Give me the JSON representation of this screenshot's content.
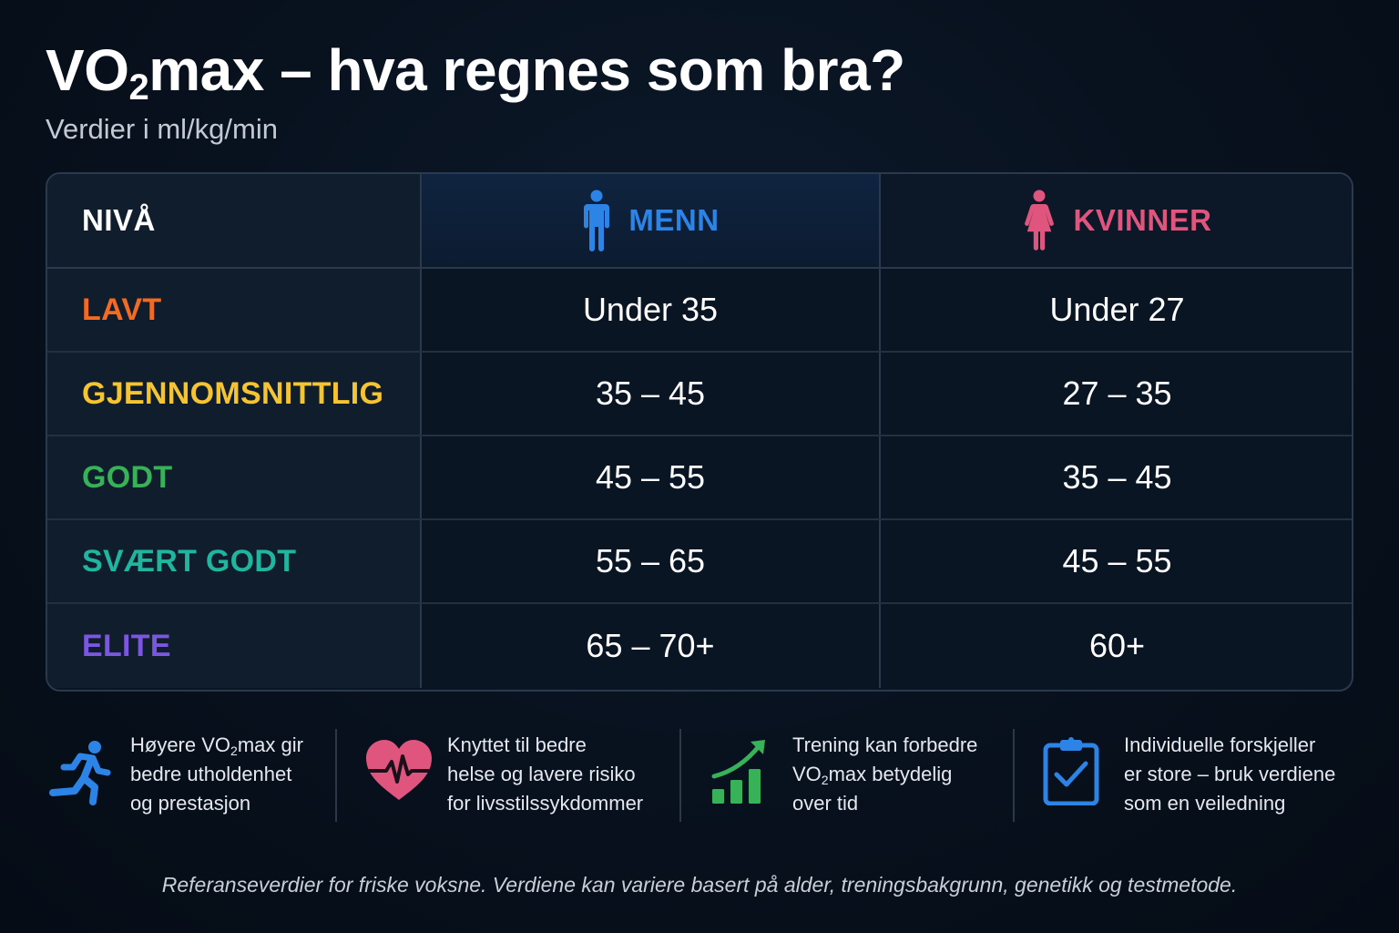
{
  "title": {
    "main": "VO",
    "sub": "2",
    "rest": "max – hva regnes som bra?"
  },
  "subtitle": "Verdier i ml/kg/min",
  "colors": {
    "men": "#2b84e6",
    "women": "#e0557e",
    "lavt": "#f26b21",
    "gjennomsnittlig": "#f5c431",
    "godt": "#38b258",
    "svaert_godt": "#1fb59e",
    "elite": "#7b56e0"
  },
  "table": {
    "header": {
      "level": "NIVÅ",
      "men": "MENN",
      "women": "KVINNER",
      "men_icon": "male-person-icon",
      "women_icon": "female-person-icon"
    },
    "rows": [
      {
        "level": "LAVT",
        "men": "Under 35",
        "women": "Under 27",
        "color": "#f26b21"
      },
      {
        "level": "GJENNOMSNITTLIG",
        "men": "35 – 45",
        "women": "27 – 35",
        "color": "#f5c431"
      },
      {
        "level": "GODT",
        "men": "45 – 55",
        "women": "35 – 45",
        "color": "#38b258"
      },
      {
        "level": "SVÆRT GODT",
        "men": "55 – 65",
        "women": "45 – 55",
        "color": "#1fb59e"
      },
      {
        "level": "ELITE",
        "men": "65 – 70+",
        "women": "60+",
        "color": "#7b56e0"
      }
    ]
  },
  "features": [
    {
      "icon": "runner-icon",
      "line1_pre": "Høyere VO",
      "line1_sub": "2",
      "line1_post": "max gir",
      "line2": "bedre utholdenhet",
      "line3": "og prestasjon"
    },
    {
      "icon": "heart-pulse-icon",
      "line1": "Knyttet til bedre",
      "line2": "helse og lavere risiko",
      "line3": "for livsstilssykdommer"
    },
    {
      "icon": "growth-chart-icon",
      "line1": "Trening kan forbedre",
      "line2_pre": "VO",
      "line2_sub": "2",
      "line2_post": "max betydelig",
      "line3": "over tid"
    },
    {
      "icon": "clipboard-check-icon",
      "line1": "Individuelle forskjeller",
      "line2": "er store – bruk verdiene",
      "line3": "som en veiledning"
    }
  ],
  "footer": "Referanseverdier for friske voksne. Verdiene kan variere basert på alder, treningsbakgrunn, genetikk og testmetode."
}
